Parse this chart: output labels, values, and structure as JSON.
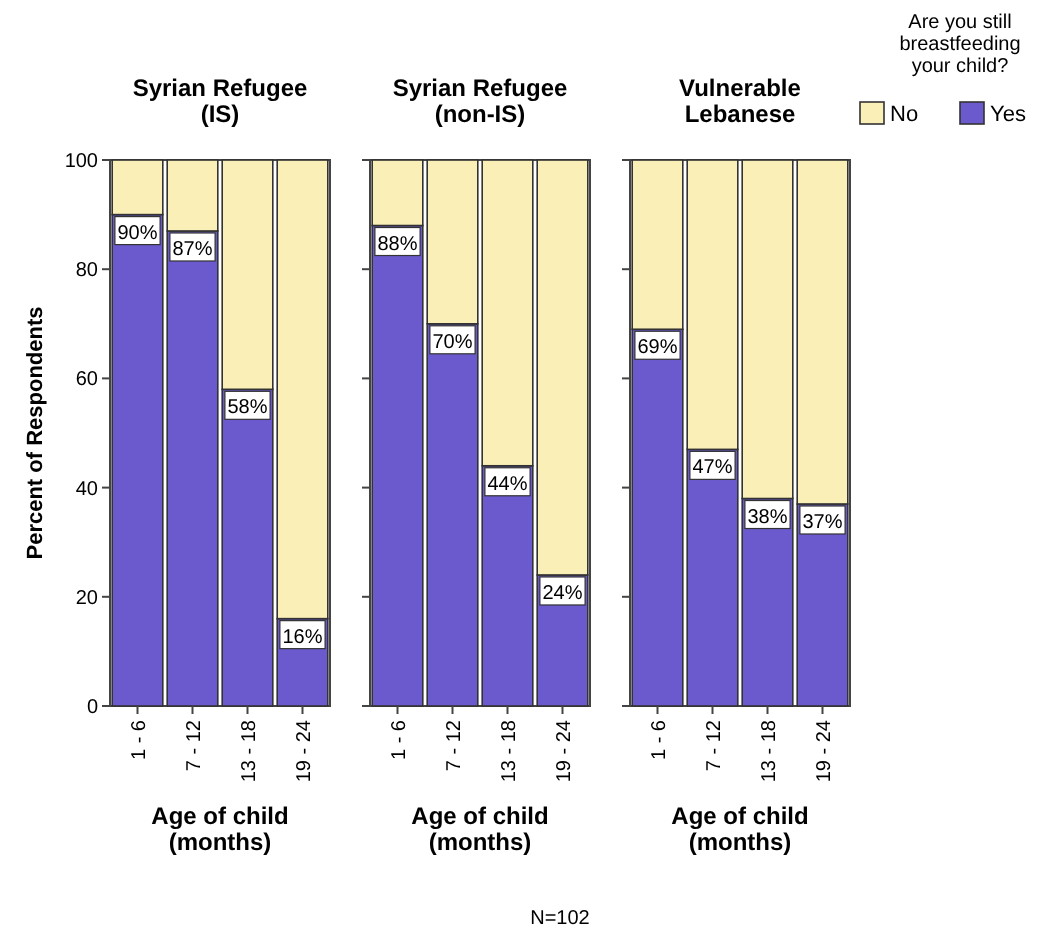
{
  "chart_data": [
    {
      "type": "bar",
      "stacked": true,
      "title": "Syrian Refugee\n(IS)",
      "xlabel": "Age of child\n(months)",
      "ylabel": "Percent of Respondents",
      "legend": "top right",
      "legend_title": "Are you still\nbreastfeeding\nyour child?",
      "categories": [
        "1 - 6",
        "7 - 12",
        "13 - 18",
        "19 - 24"
      ],
      "ylim": [
        0,
        100
      ],
      "yticks": [
        0,
        20,
        40,
        60,
        80,
        100
      ],
      "series": [
        {
          "name": "Yes",
          "color": "#6a5acd",
          "values": [
            90,
            87,
            58,
            16
          ],
          "value_labels": [
            "90%",
            "87%",
            "58%",
            "16%"
          ]
        },
        {
          "name": "No",
          "color": "#fbefb8",
          "values": [
            10,
            13,
            42,
            84
          ]
        }
      ]
    },
    {
      "type": "bar",
      "stacked": true,
      "title": "Syrian Refugee\n(non-IS)",
      "xlabel": "Age of child\n(months)",
      "categories": [
        "1 - 6",
        "7 - 12",
        "13 - 18",
        "19 - 24"
      ],
      "ylim": [
        0,
        100
      ],
      "yticks": [
        0,
        20,
        40,
        60,
        80,
        100
      ],
      "tick_labels": "x",
      "annotations": [
        "N=102"
      ],
      "series": [
        {
          "color": "#6a5acd",
          "values": [
            88,
            70,
            44,
            24
          ],
          "value_labels": [
            "88%",
            "70%",
            "44%",
            "24%"
          ]
        },
        {
          "color": "#fbefb8",
          "values": [
            12,
            30,
            56,
            76
          ]
        }
      ]
    },
    {
      "type": "bar",
      "stacked": true,
      "title": "Vulnerable\nLebanese",
      "xlabel": "Age of child\n(months)",
      "categories": [
        "1 - 6",
        "7 - 12",
        "13 - 18",
        "19 - 24"
      ],
      "ylim": [
        0,
        100
      ],
      "yticks": [
        0,
        20,
        40,
        60,
        80,
        100
      ],
      "tick_labels": "x",
      "series": [
        {
          "color": "#6a5acd",
          "values": [
            69,
            47,
            38,
            37
          ],
          "value_labels": [
            "69%",
            "47%",
            "38%",
            "37%"
          ]
        },
        {
          "color": "#fbefb8",
          "values": [
            31,
            53,
            62,
            63
          ]
        }
      ]
    }
  ]
}
